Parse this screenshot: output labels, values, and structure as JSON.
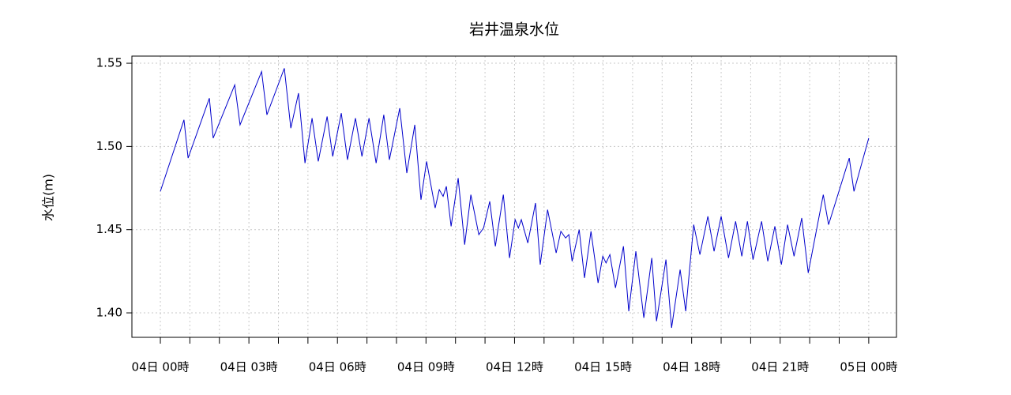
{
  "chart_data": {
    "type": "line",
    "title": "岩井温泉水位",
    "y_label": "水位(m)",
    "color": "#0000cc",
    "x": [
      0,
      0.8,
      0.94,
      1.66,
      1.79,
      2.52,
      2.7,
      3.43,
      3.61,
      4.2,
      4.42,
      4.68,
      4.9,
      5.14,
      5.35,
      5.65,
      5.84,
      6.13,
      6.34,
      6.61,
      6.83,
      7.07,
      7.31,
      7.57,
      7.76,
      8.11,
      8.35,
      8.62,
      8.83,
      9.02,
      9.31,
      9.45,
      9.58,
      9.69,
      9.85,
      10.09,
      10.31,
      10.52,
      10.79,
      10.95,
      11.16,
      11.35,
      11.62,
      11.83,
      12.02,
      12.13,
      12.23,
      12.45,
      12.71,
      12.87,
      13.12,
      13.41,
      13.57,
      13.73,
      13.84,
      13.95,
      14.19,
      14.37,
      14.59,
      14.83,
      14.99,
      15.1,
      15.23,
      15.42,
      15.69,
      15.87,
      16.11,
      16.38,
      16.65,
      16.81,
      17.13,
      17.32,
      17.61,
      17.8,
      18.07,
      18.28,
      18.55,
      18.76,
      19.0,
      19.25,
      19.49,
      19.7,
      19.89,
      20.08,
      20.37,
      20.58,
      20.82,
      21.04,
      21.25,
      21.47,
      21.73,
      21.95,
      22.46,
      22.64,
      23.34,
      23.5,
      24
    ],
    "values": [
      1.473,
      1.516,
      1.493,
      1.529,
      1.505,
      1.537,
      1.513,
      1.545,
      1.519,
      1.547,
      1.511,
      1.532,
      1.49,
      1.517,
      1.491,
      1.518,
      1.494,
      1.52,
      1.492,
      1.517,
      1.494,
      1.517,
      1.49,
      1.519,
      1.492,
      1.523,
      1.484,
      1.513,
      1.468,
      1.491,
      1.463,
      1.474,
      1.47,
      1.476,
      1.452,
      1.481,
      1.441,
      1.471,
      1.447,
      1.451,
      1.467,
      1.44,
      1.471,
      1.433,
      1.456,
      1.451,
      1.456,
      1.442,
      1.466,
      1.429,
      1.462,
      1.436,
      1.449,
      1.445,
      1.447,
      1.431,
      1.45,
      1.421,
      1.449,
      1.418,
      1.434,
      1.43,
      1.435,
      1.415,
      1.44,
      1.401,
      1.437,
      1.397,
      1.433,
      1.395,
      1.432,
      1.391,
      1.426,
      1.401,
      1.453,
      1.435,
      1.458,
      1.437,
      1.458,
      1.433,
      1.455,
      1.434,
      1.455,
      1.432,
      1.455,
      1.431,
      1.452,
      1.429,
      1.453,
      1.434,
      1.457,
      1.424,
      1.471,
      1.453,
      1.493,
      1.473,
      1.505
    ],
    "xlim": [
      -0.964,
      24.94
    ],
    "ylim": [
      1.3853,
      1.5543
    ],
    "xticks": [
      {
        "value": 0,
        "label": "04日 00時"
      },
      {
        "value": 3,
        "label": "04日 03時"
      },
      {
        "value": 6,
        "label": "04日 06時"
      },
      {
        "value": 9,
        "label": "04日 09時"
      },
      {
        "value": 12,
        "label": "04日 12時"
      },
      {
        "value": 15,
        "label": "04日 15時"
      },
      {
        "value": 18,
        "label": "04日 18時"
      },
      {
        "value": 21,
        "label": "04日 21時"
      },
      {
        "value": 24,
        "label": "05日 00時"
      }
    ],
    "xminorticks": [
      1,
      2,
      4,
      5,
      7,
      8,
      10,
      11,
      13,
      14,
      16,
      17,
      19,
      20,
      22,
      23
    ],
    "yticks": [
      {
        "value": 1.4,
        "label": "1.40"
      },
      {
        "value": 1.45,
        "label": "1.45"
      },
      {
        "value": 1.5,
        "label": "1.50"
      },
      {
        "value": 1.55,
        "label": "1.55"
      }
    ],
    "grid": true
  }
}
